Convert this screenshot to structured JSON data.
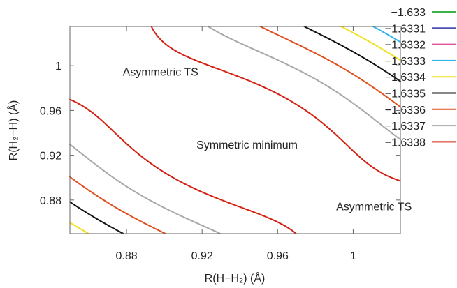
{
  "chart_data": {
    "type": "contour",
    "xlabel": "R(H−H₂) (Å)",
    "ylabel": "R(H₂−H) (Å)",
    "xlim": [
      0.85,
      1.025
    ],
    "ylim": [
      0.85,
      1.035
    ],
    "xticks": [
      0.88,
      0.92,
      0.96,
      1
    ],
    "xtick_labels": [
      "0.88",
      "0.92",
      "0.96",
      "1"
    ],
    "yticks": [
      0.88,
      0.92,
      0.96,
      1
    ],
    "ytick_labels": [
      "0.88",
      "0.92",
      "0.96",
      "1"
    ],
    "grid": false,
    "legend_position": "right, outside",
    "levels": [
      {
        "value": -1.633,
        "label": "−1.633",
        "color": "#3bb44a"
      },
      {
        "value": -1.6331,
        "label": "−1.6331",
        "color": "#4a4fb0"
      },
      {
        "value": -1.6332,
        "label": "−1.6332",
        "color": "#e0509a"
      },
      {
        "value": -1.6333,
        "label": "−1.6333",
        "color": "#33b6e8"
      },
      {
        "value": -1.6334,
        "label": "−1.6334",
        "color": "#f0e020"
      },
      {
        "value": -1.6335,
        "label": "−1.6335",
        "color": "#111111"
      },
      {
        "value": -1.6336,
        "label": "−1.6336",
        "color": "#e0501e"
      },
      {
        "value": -1.6337,
        "label": "−1.6337",
        "color": "#a8a8a8"
      },
      {
        "value": -1.6338,
        "label": "−1.6338",
        "color": "#d42010"
      }
    ],
    "features": [
      {
        "label": "Symmetric minimum",
        "x": 0.935,
        "y": 0.935
      },
      {
        "label": "Asymmetric TS",
        "x": 0.875,
        "y": 1.0
      },
      {
        "label": "Asymmetric TS",
        "x": 1.0,
        "y": 0.875
      }
    ],
    "annotations": [
      {
        "text": "Asymmetric TS",
        "x": 0.878,
        "y": 0.991
      },
      {
        "text": "Symmetric minimum",
        "x": 0.917,
        "y": 0.926
      },
      {
        "text": "Asymmetric TS",
        "x": 0.991,
        "y": 0.871
      }
    ]
  }
}
